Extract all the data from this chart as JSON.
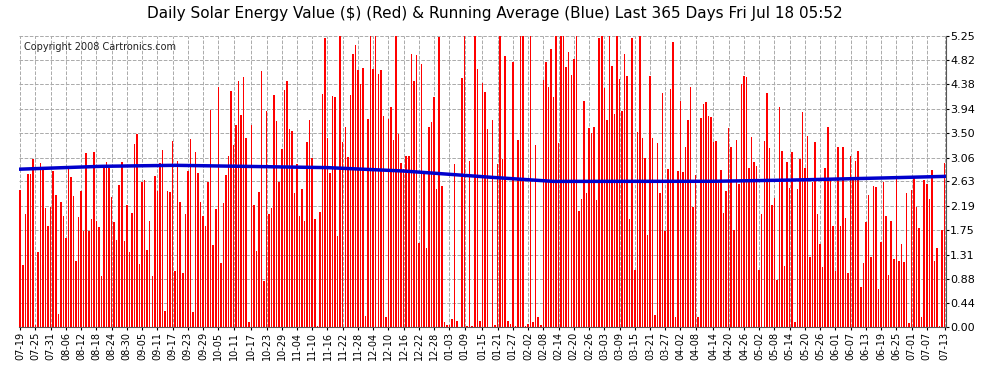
{
  "title": "Daily Solar Energy Value ($) (Red) & Running Average (Blue) Last 365 Days Fri Jul 18 05:52",
  "copyright": "Copyright 2008 Cartronics.com",
  "yticks": [
    0.0,
    0.44,
    0.88,
    1.31,
    1.75,
    2.19,
    2.63,
    3.06,
    3.5,
    3.94,
    4.38,
    4.82,
    5.25
  ],
  "bar_color": "#ff0000",
  "avg_color": "#0000cc",
  "bg_color": "#ffffff",
  "grid_color": "#aaaaaa",
  "title_fontsize": 11,
  "copyright_fontsize": 7,
  "tick_fontsize": 8,
  "ylim": [
    0,
    5.25
  ],
  "avg_points": [
    [
      0,
      2.85
    ],
    [
      30,
      2.9
    ],
    [
      60,
      2.92
    ],
    [
      90,
      2.9
    ],
    [
      120,
      2.88
    ],
    [
      150,
      2.82
    ],
    [
      180,
      2.72
    ],
    [
      210,
      2.63
    ],
    [
      240,
      2.63
    ],
    [
      270,
      2.63
    ],
    [
      300,
      2.65
    ],
    [
      330,
      2.68
    ],
    [
      364,
      2.72
    ]
  ],
  "x_labels": [
    "07-19",
    "07-25",
    "07-31",
    "08-06",
    "08-12",
    "08-18",
    "08-24",
    "08-30",
    "09-05",
    "09-11",
    "09-17",
    "09-23",
    "09-29",
    "10-05",
    "10-11",
    "10-17",
    "10-23",
    "10-29",
    "11-04",
    "11-10",
    "11-16",
    "11-22",
    "11-28",
    "12-04",
    "12-10",
    "12-16",
    "12-22",
    "12-28",
    "01-03",
    "01-09",
    "01-15",
    "01-21",
    "01-27",
    "02-02",
    "02-08",
    "02-14",
    "02-20",
    "02-26",
    "03-03",
    "03-09",
    "03-15",
    "03-21",
    "03-27",
    "04-02",
    "04-08",
    "04-14",
    "04-20",
    "04-26",
    "05-02",
    "05-08",
    "05-14",
    "05-20",
    "05-26",
    "06-01",
    "06-07",
    "06-13",
    "06-19",
    "06-25",
    "07-01",
    "07-07",
    "07-13"
  ]
}
